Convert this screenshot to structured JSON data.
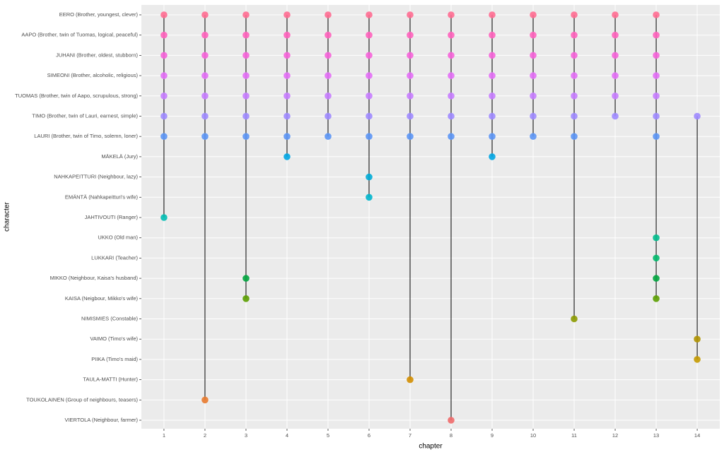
{
  "chart_data": {
    "type": "dot",
    "xlabel": "chapter",
    "ylabel": "character",
    "xlim": [
      0.45,
      14.55
    ],
    "xticks": [
      1,
      2,
      3,
      4,
      5,
      6,
      7,
      8,
      9,
      10,
      11,
      12,
      13,
      14
    ],
    "grid": true,
    "series": [
      {
        "name": "EERO (Brother, youngest, clever)",
        "color": "#FF6C91",
        "x": [
          1,
          2,
          3,
          4,
          5,
          6,
          7,
          8,
          9,
          10,
          11,
          12,
          13
        ]
      },
      {
        "name": "AAPO (Brother, twin of Tuomas, logical, peaceful)",
        "color": "#FF62BC",
        "x": [
          1,
          2,
          3,
          4,
          5,
          6,
          7,
          8,
          9,
          10,
          11,
          12,
          13
        ]
      },
      {
        "name": "JUHANI (Brother, oldest, stubborn)",
        "color": "#F663D9",
        "x": [
          1,
          2,
          3,
          4,
          5,
          6,
          7,
          8,
          9,
          10,
          11,
          12,
          13
        ]
      },
      {
        "name": "SIMEONI (Brother, alcoholic, religious)",
        "color": "#E36EF6",
        "x": [
          1,
          2,
          3,
          4,
          5,
          6,
          7,
          8,
          9,
          10,
          11,
          12,
          13
        ]
      },
      {
        "name": "TUOMAS (Brother, twin of Aapo, scrupulous, strong)",
        "color": "#C77CFF",
        "x": [
          1,
          2,
          3,
          4,
          5,
          6,
          7,
          8,
          9,
          10,
          11,
          12,
          13
        ]
      },
      {
        "name": "TIMO (Brother, twin of Lauri, earnest, simple)",
        "color": "#9F8AFF",
        "x": [
          1,
          2,
          3,
          4,
          5,
          6,
          7,
          8,
          9,
          10,
          11,
          12,
          13,
          14
        ]
      },
      {
        "name": "LAURI (Brother, twin of Timo, solemn, loner)",
        "color": "#5B95F5",
        "x": [
          1,
          2,
          3,
          4,
          5,
          6,
          7,
          8,
          9,
          10,
          11,
          13
        ]
      },
      {
        "name": "MÄKELÄ (Jury)",
        "color": "#00A5E3",
        "x": [
          4,
          9
        ]
      },
      {
        "name": "NAHKAPEITTURI (Neighbour, lazy)",
        "color": "#00ABD6",
        "x": [
          6
        ]
      },
      {
        "name": "EMÄNTÄ (Nahkapeitturi's wife)",
        "color": "#00B5CC",
        "x": [
          6
        ]
      },
      {
        "name": "JAHTIVOUTI (Ranger)",
        "color": "#00BCB2",
        "x": [
          1
        ]
      },
      {
        "name": "UKKO (Old man)",
        "color": "#00BD8C",
        "x": [
          13
        ]
      },
      {
        "name": "LUKKARI (Teacher)",
        "color": "#00B96B",
        "x": [
          13
        ]
      },
      {
        "name": "MIKKO (Neighbour, Kaisa's husband)",
        "color": "#00A53E",
        "x": [
          3,
          13
        ]
      },
      {
        "name": "KAISA (Neigbour, Mikko's wife)",
        "color": "#5B9E00",
        "x": [
          3,
          13
        ]
      },
      {
        "name": "NIMISMIES (Constable)",
        "color": "#8C9A00",
        "x": [
          11
        ]
      },
      {
        "name": "VAIMO (Timo's wife)",
        "color": "#B09300",
        "x": [
          14
        ]
      },
      {
        "name": "PIIKA (Timo's maid)",
        "color": "#C49A00",
        "x": [
          14
        ]
      },
      {
        "name": "TAULA-MATTI (Hunter)",
        "color": "#D38E00",
        "x": [
          7
        ]
      },
      {
        "name": "TOUKOLAINEN (Group of neighbours, teasers)",
        "color": "#E87A2E",
        "x": [
          2
        ]
      },
      {
        "name": "VIERTOLA (Neighbour, farmer)",
        "color": "#F06A6A",
        "x": [
          8
        ]
      }
    ]
  }
}
